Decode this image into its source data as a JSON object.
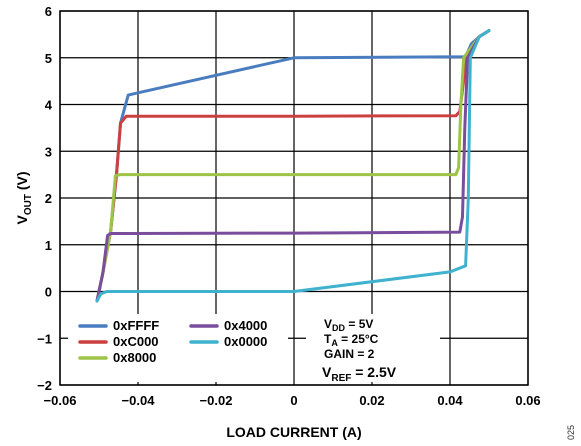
{
  "chart_data": {
    "type": "line",
    "xlabel": "LOAD CURRENT (A)",
    "ylabel": {
      "main": "V",
      "sub": "OUT",
      "unit": " (V)"
    },
    "xlim": [
      -0.06,
      0.06
    ],
    "ylim": [
      -2,
      6
    ],
    "grid": true,
    "x_ticks": [
      {
        "value": -0.06,
        "label": "−0.06"
      },
      {
        "value": -0.04,
        "label": "−0.04"
      },
      {
        "value": -0.02,
        "label": "−0.02"
      },
      {
        "value": 0,
        "label": "0"
      },
      {
        "value": 0.02,
        "label": "0.02"
      },
      {
        "value": 0.04,
        "label": "0.04"
      },
      {
        "value": 0.06,
        "label": "0.06"
      }
    ],
    "y_ticks": [
      {
        "value": -2,
        "label": "−2"
      },
      {
        "value": -1,
        "label": "−1"
      },
      {
        "value": 0,
        "label": "0"
      },
      {
        "value": 1,
        "label": "1"
      },
      {
        "value": 2,
        "label": "2"
      },
      {
        "value": 3,
        "label": "3"
      },
      {
        "value": 4,
        "label": "4"
      },
      {
        "value": 5,
        "label": "5"
      },
      {
        "value": 6,
        "label": "6"
      }
    ],
    "series": [
      {
        "name": "0xFFFF",
        "color": "#4a7dbf",
        "points": [
          [
            -0.0505,
            -0.2
          ],
          [
            -0.049,
            0.4
          ],
          [
            -0.047,
            1.3
          ],
          [
            -0.0455,
            2.5
          ],
          [
            -0.0445,
            3.6
          ],
          [
            -0.0425,
            4.2
          ],
          [
            -0.04,
            4.25
          ],
          [
            0.0,
            5.0
          ],
          [
            0.044,
            5.02
          ],
          [
            0.0455,
            5.3
          ],
          [
            0.0475,
            5.45
          ],
          [
            0.05,
            5.58
          ]
        ]
      },
      {
        "name": "0xC000",
        "color": "#cc3f3f",
        "points": [
          [
            -0.0505,
            -0.2
          ],
          [
            -0.049,
            0.4
          ],
          [
            -0.047,
            1.3
          ],
          [
            -0.0455,
            2.5
          ],
          [
            -0.0445,
            3.6
          ],
          [
            -0.043,
            3.75
          ],
          [
            0.0,
            3.75
          ],
          [
            0.0415,
            3.76
          ],
          [
            0.0425,
            3.85
          ],
          [
            0.0435,
            4.5
          ],
          [
            0.0445,
            5.1
          ],
          [
            0.0475,
            5.45
          ],
          [
            0.05,
            5.58
          ]
        ]
      },
      {
        "name": "0x8000",
        "color": "#9dc446",
        "points": [
          [
            -0.0505,
            -0.2
          ],
          [
            -0.049,
            0.4
          ],
          [
            -0.047,
            1.3
          ],
          [
            -0.0458,
            2.48
          ],
          [
            -0.0445,
            2.5
          ],
          [
            0.0,
            2.5
          ],
          [
            0.0415,
            2.5
          ],
          [
            0.0422,
            2.65
          ],
          [
            0.0428,
            4.0
          ],
          [
            0.0435,
            5.0
          ],
          [
            0.0475,
            5.45
          ],
          [
            0.05,
            5.58
          ]
        ]
      },
      {
        "name": "0x4000",
        "color": "#7a4d9c",
        "points": [
          [
            -0.0505,
            -0.2
          ],
          [
            -0.049,
            0.4
          ],
          [
            -0.0478,
            1.2
          ],
          [
            -0.047,
            1.24
          ],
          [
            0.0,
            1.25
          ],
          [
            0.0425,
            1.27
          ],
          [
            0.0432,
            1.6
          ],
          [
            0.0438,
            3.5
          ],
          [
            0.0445,
            5.0
          ],
          [
            0.0475,
            5.45
          ],
          [
            0.05,
            5.58
          ]
        ]
      },
      {
        "name": "0x0000",
        "color": "#3fb2cf",
        "points": [
          [
            -0.0505,
            -0.2
          ],
          [
            -0.0495,
            -0.05
          ],
          [
            -0.048,
            0.0
          ],
          [
            0.0,
            0.0
          ],
          [
            0.04,
            0.42
          ],
          [
            0.044,
            0.55
          ],
          [
            0.0447,
            2.0
          ],
          [
            0.0452,
            5.0
          ],
          [
            0.0475,
            5.45
          ],
          [
            0.05,
            5.58
          ]
        ]
      }
    ],
    "legend": {
      "placement": "bottom-left",
      "columns": 2
    },
    "annotations": {
      "vdd": {
        "main": "V",
        "sub": "DD",
        "rest": " = 5V"
      },
      "ta": {
        "main": "T",
        "sub": "A",
        "rest": " = 25°C"
      },
      "gain": "GAIN = 2",
      "vref": {
        "main": "V",
        "sub": "REF",
        "rest": " = 2.5V"
      }
    },
    "figure_id": "025"
  }
}
